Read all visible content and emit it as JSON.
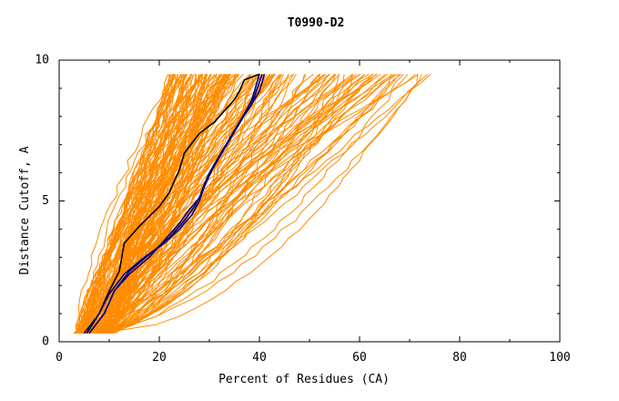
{
  "chart_data": {
    "type": "line",
    "title": "T0990-D2",
    "xlabel": "Percent of Residues (CA)",
    "ylabel": "Distance Cutoff, A",
    "xlim": [
      0,
      100
    ],
    "ylim": [
      0,
      10
    ],
    "xticks": [
      "0",
      "20",
      "40",
      "60",
      "80",
      "100"
    ],
    "yticks": [
      "0",
      "5",
      "10"
    ],
    "grid": false,
    "colors": {
      "background_models": "#ff8c00",
      "highlight_dark": "#000000",
      "highlight_blue": "#000080"
    },
    "series_highlight": [
      {
        "color": "#000000",
        "x": [
          5.5,
          8,
          10,
          12,
          13,
          16,
          20,
          22,
          24,
          25,
          28,
          31,
          33,
          35,
          36,
          37,
          40
        ],
        "y": [
          0.3,
          1.0,
          1.8,
          2.5,
          3.5,
          4.1,
          4.8,
          5.3,
          6.1,
          6.7,
          7.4,
          7.8,
          8.2,
          8.6,
          8.9,
          9.3,
          9.5
        ]
      },
      {
        "color": "#000080",
        "x": [
          6,
          9,
          11,
          14,
          18,
          21,
          24,
          26,
          28,
          29,
          30,
          32,
          34,
          36,
          38,
          40,
          41
        ],
        "y": [
          0.3,
          1.0,
          1.8,
          2.4,
          3.0,
          3.6,
          4.2,
          4.7,
          5.1,
          5.6,
          6.0,
          6.6,
          7.2,
          7.8,
          8.3,
          8.9,
          9.5
        ]
      },
      {
        "color": "#000080",
        "x": [
          6,
          9,
          11,
          14,
          18,
          22,
          25,
          27,
          28.5,
          29.5,
          31,
          33,
          35,
          37,
          39,
          40.5
        ],
        "y": [
          0.3,
          1.0,
          1.8,
          2.5,
          3.1,
          3.7,
          4.3,
          4.8,
          5.3,
          5.8,
          6.3,
          6.9,
          7.5,
          8.1,
          8.7,
          9.5
        ]
      },
      {
        "color": "#000080",
        "x": [
          5,
          8,
          10,
          13,
          17,
          21,
          24,
          26.5,
          28,
          29,
          30.5,
          32.5,
          34.5,
          36.5,
          38.5,
          40
        ],
        "y": [
          0.3,
          1.0,
          1.7,
          2.4,
          3.0,
          3.5,
          4.0,
          4.5,
          5.0,
          5.5,
          6.1,
          6.7,
          7.3,
          7.9,
          8.6,
          9.5
        ]
      }
    ]
  }
}
